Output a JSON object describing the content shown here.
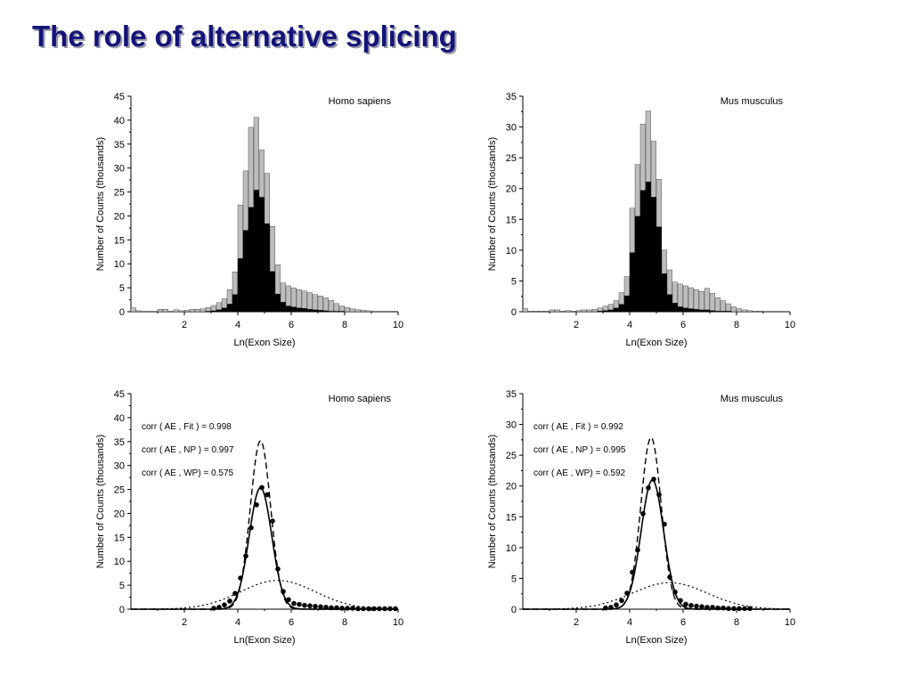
{
  "slide": {
    "title": "The role of alternative splicing"
  },
  "colors": {
    "title": "#14147a",
    "gray_bar": "#bdbdbd",
    "black_bar": "#000000",
    "points": "#000000"
  },
  "chart_data": [
    {
      "type": "bar",
      "title": "Homo sapiens",
      "xlabel": "Ln(Exon Size)",
      "ylabel": "Number of Counts (thousands)",
      "xlim": [
        0,
        10
      ],
      "ylim": [
        0,
        45
      ],
      "xticks": [
        "2",
        "4",
        "6",
        "8",
        "10"
      ],
      "yticks": [
        "0",
        "5",
        "10",
        "15",
        "20",
        "25",
        "30",
        "35",
        "40",
        "45"
      ],
      "bin_width": 0.2,
      "x": [
        0.1,
        0.3,
        0.5,
        0.7,
        0.9,
        1.1,
        1.3,
        1.5,
        1.7,
        1.9,
        2.1,
        2.3,
        2.5,
        2.7,
        2.9,
        3.1,
        3.3,
        3.5,
        3.7,
        3.9,
        4.1,
        4.3,
        4.5,
        4.7,
        4.9,
        5.1,
        5.3,
        5.5,
        5.7,
        5.9,
        6.1,
        6.3,
        6.5,
        6.7,
        6.9,
        7.1,
        7.3,
        7.5,
        7.7,
        7.9,
        8.1,
        8.3,
        8.5,
        8.7,
        8.9,
        9.1,
        9.3,
        9.5,
        9.7,
        9.9
      ],
      "series": [
        {
          "values": [
            0.8,
            0.2,
            0.1,
            0.1,
            0.1,
            0.5,
            0.5,
            0.1,
            0.4,
            0.2,
            0.3,
            0.5,
            0.5,
            0.6,
            0.9,
            1.3,
            1.9,
            2.7,
            4.6,
            8.3,
            22.3,
            29.4,
            38.5,
            40.6,
            33.8,
            28.9,
            17.8,
            9.8,
            6.0,
            5.4,
            5.0,
            4.6,
            4.3,
            4.0,
            3.6,
            3.3,
            2.9,
            2.4,
            1.7,
            1.2,
            0.9,
            0.6,
            0.4,
            0.3,
            0.2,
            0.1,
            0.1,
            0.1,
            0.1,
            0.1
          ]
        },
        {
          "values": [
            0,
            0,
            0,
            0,
            0,
            0,
            0,
            0,
            0,
            0,
            0,
            0,
            0,
            0,
            0.1,
            0.2,
            0.4,
            0.8,
            1.6,
            3.6,
            11.1,
            17.0,
            21.8,
            25.4,
            23.9,
            18.4,
            8.4,
            3.7,
            2.0,
            1.2,
            1.0,
            0.8,
            0.7,
            0.5,
            0.4,
            0.3,
            0.2,
            0.1,
            0.1,
            0.1,
            0,
            0,
            0,
            0,
            0,
            0,
            0,
            0,
            0,
            0
          ]
        }
      ]
    },
    {
      "type": "bar",
      "title": "Mus musculus",
      "xlabel": "Ln(Exon Size)",
      "ylabel": "Number of Counts (thousands)",
      "xlim": [
        0,
        10
      ],
      "ylim": [
        0,
        35
      ],
      "xticks": [
        "2",
        "4",
        "6",
        "8",
        "10"
      ],
      "yticks": [
        "0",
        "5",
        "10",
        "15",
        "20",
        "25",
        "30",
        "35"
      ],
      "bin_width": 0.2,
      "x": [
        0.1,
        0.3,
        0.5,
        0.7,
        0.9,
        1.1,
        1.3,
        1.5,
        1.7,
        1.9,
        2.1,
        2.3,
        2.5,
        2.7,
        2.9,
        3.1,
        3.3,
        3.5,
        3.7,
        3.9,
        4.1,
        4.3,
        4.5,
        4.7,
        4.9,
        5.1,
        5.3,
        5.5,
        5.7,
        5.9,
        6.1,
        6.3,
        6.5,
        6.7,
        6.9,
        7.1,
        7.3,
        7.5,
        7.7,
        7.9,
        8.1,
        8.3,
        8.5,
        8.7,
        8.9,
        9.1,
        9.3,
        9.5,
        9.7,
        9.9
      ],
      "series": [
        {
          "values": [
            0.5,
            0.1,
            0.1,
            0.1,
            0.1,
            0.3,
            0.3,
            0.1,
            0.2,
            0.1,
            0.2,
            0.3,
            0.3,
            0.4,
            0.6,
            0.9,
            1.2,
            1.8,
            3.1,
            5.7,
            16.8,
            23.9,
            30.5,
            32.6,
            27.7,
            21.5,
            10.0,
            6.8,
            4.8,
            4.5,
            4.2,
            3.9,
            3.6,
            3.3,
            3.8,
            3.0,
            2.3,
            1.8,
            1.3,
            0.8,
            0.5,
            0.3,
            0.2,
            0.1,
            0.1,
            0,
            0,
            0,
            0,
            0
          ]
        },
        {
          "values": [
            0,
            0,
            0,
            0,
            0,
            0,
            0,
            0,
            0,
            0,
            0,
            0,
            0,
            0,
            0.1,
            0.2,
            0.3,
            0.6,
            1.2,
            2.6,
            9.6,
            15.5,
            19.7,
            21.1,
            18.6,
            13.8,
            6.2,
            2.8,
            1.4,
            0.8,
            0.6,
            0.5,
            0.4,
            0.3,
            0.3,
            0.2,
            0.1,
            0.1,
            0.1,
            0,
            0,
            0,
            0,
            0,
            0,
            0,
            0,
            0,
            0,
            0
          ]
        }
      ]
    },
    {
      "type": "line",
      "title": "Homo sapiens",
      "xlabel": "Ln(Exon Size)",
      "ylabel": "Number of Counts (thousands)",
      "xlim": [
        0,
        10
      ],
      "ylim": [
        0,
        45
      ],
      "xticks": [
        "2",
        "4",
        "6",
        "8",
        "10"
      ],
      "yticks": [
        "0",
        "5",
        "10",
        "15",
        "20",
        "25",
        "30",
        "35",
        "40",
        "45"
      ],
      "annotations": [
        "corr ( AE , Fit  ) = 0.998",
        "corr ( AE , NP ) = 0.997",
        "corr ( AE , WP) = 0.575"
      ],
      "points": {
        "x": [
          3.1,
          3.3,
          3.5,
          3.7,
          3.9,
          4.1,
          4.3,
          4.5,
          4.7,
          4.9,
          5.1,
          5.3,
          5.5,
          5.7,
          5.9,
          6.1,
          6.3,
          6.5,
          6.7,
          6.9,
          7.1,
          7.3,
          7.5,
          7.7,
          7.9,
          8.1,
          8.3,
          8.5,
          8.7,
          8.9,
          9.1,
          9.3,
          9.5,
          9.7,
          9.9
        ],
        "y": [
          0.2,
          0.4,
          0.9,
          1.7,
          3.3,
          6.5,
          11.1,
          17.0,
          21.8,
          25.4,
          23.9,
          18.4,
          8.4,
          3.7,
          2.0,
          1.2,
          1.0,
          0.8,
          0.7,
          0.6,
          0.5,
          0.4,
          0.3,
          0.3,
          0.2,
          0.2,
          0.2,
          0.1,
          0.1,
          0.1,
          0.1,
          0.1,
          0.1,
          0.1,
          0.1
        ]
      },
      "curves": [
        {
          "style": "solid",
          "type": "gaussian",
          "amplitude": 25.4,
          "mean": 4.85,
          "sigma": 0.42
        },
        {
          "style": "dashed",
          "type": "gaussian",
          "amplitude": 35.2,
          "mean": 4.85,
          "sigma": 0.38
        },
        {
          "style": "dotted",
          "type": "gaussian",
          "amplitude": 6.0,
          "mean": 5.5,
          "sigma": 1.4
        }
      ]
    },
    {
      "type": "line",
      "title": "Mus musculus",
      "xlabel": "Ln(Exon Size)",
      "ylabel": "Number of Counts (thousands)",
      "xlim": [
        0,
        10
      ],
      "ylim": [
        0,
        35
      ],
      "xticks": [
        "2",
        "4",
        "6",
        "8",
        "10"
      ],
      "yticks": [
        "0",
        "5",
        "10",
        "15",
        "20",
        "25",
        "30",
        "35"
      ],
      "annotations": [
        "corr ( AE , Fit  ) = 0.992",
        "corr ( AE , NP ) = 0.995",
        "corr ( AE , WP) = 0.592"
      ],
      "points": {
        "x": [
          3.1,
          3.3,
          3.5,
          3.7,
          3.9,
          4.1,
          4.3,
          4.5,
          4.7,
          4.9,
          5.1,
          5.3,
          5.5,
          5.7,
          5.9,
          6.1,
          6.3,
          6.5,
          6.7,
          6.9,
          7.1,
          7.3,
          7.5,
          7.7,
          7.9,
          8.1,
          8.3,
          8.5
        ],
        "y": [
          0.2,
          0.3,
          0.7,
          1.4,
          2.6,
          6.0,
          9.6,
          15.5,
          19.7,
          21.1,
          18.6,
          13.8,
          5.2,
          2.8,
          1.4,
          0.8,
          0.6,
          0.5,
          0.4,
          0.3,
          0.3,
          0.2,
          0.2,
          0.1,
          0.1,
          0.1,
          0.1,
          0.1
        ]
      },
      "curves": [
        {
          "style": "solid",
          "type": "gaussian",
          "amplitude": 21.0,
          "mean": 4.85,
          "sigma": 0.42
        },
        {
          "style": "dashed",
          "type": "gaussian",
          "amplitude": 27.9,
          "mean": 4.8,
          "sigma": 0.38
        },
        {
          "style": "dotted",
          "type": "gaussian",
          "amplitude": 4.3,
          "mean": 5.5,
          "sigma": 1.4
        }
      ]
    }
  ]
}
